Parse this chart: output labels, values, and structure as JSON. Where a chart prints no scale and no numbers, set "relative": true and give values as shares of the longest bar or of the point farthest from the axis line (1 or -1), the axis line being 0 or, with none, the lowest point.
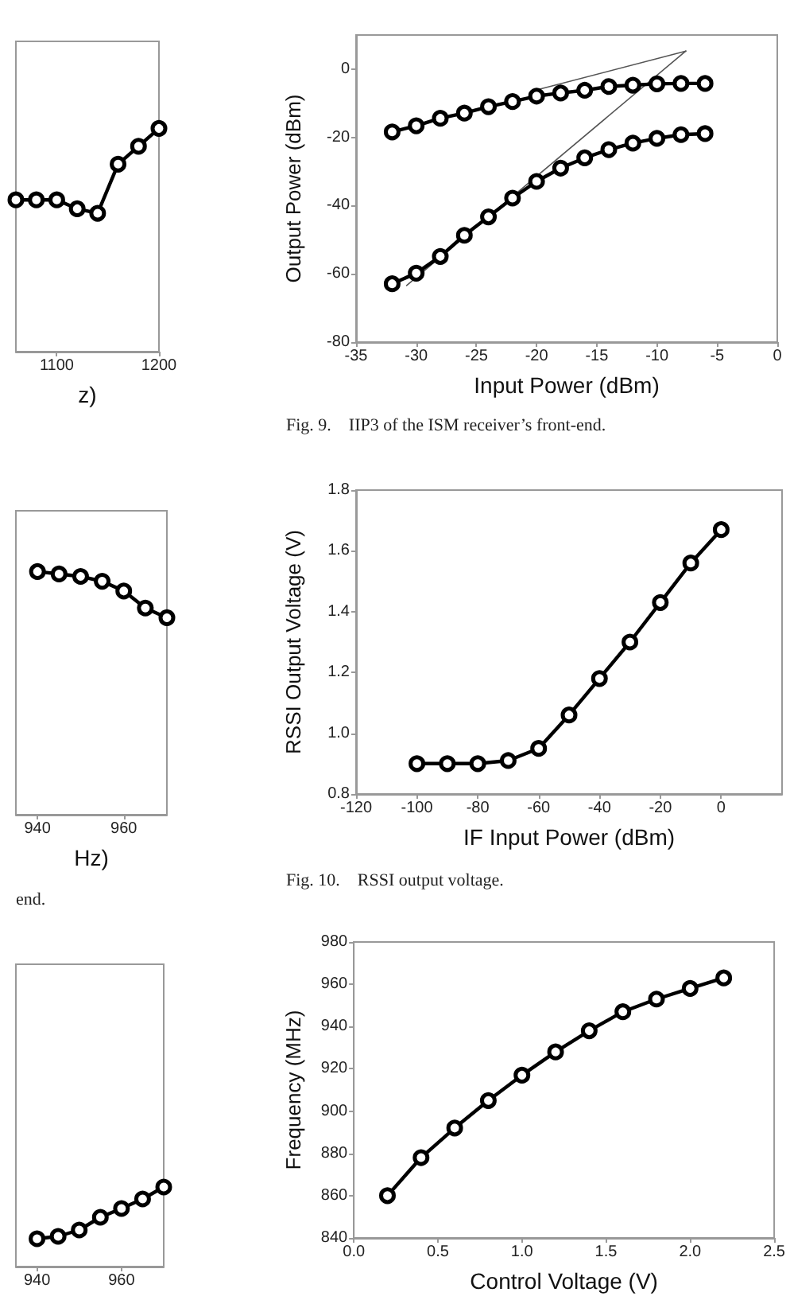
{
  "chart_data": [
    {
      "type": "line",
      "xlabel": "z)",
      "relative": true,
      "marker": "circle",
      "xlim": [
        1060,
        1200
      ],
      "xticks": [
        1100,
        1200
      ],
      "x": [
        1060,
        1080,
        1100,
        1120,
        1140,
        1160,
        1180,
        1200
      ],
      "series": [
        {
          "color": "#000000",
          "values": [
            0.68,
            0.68,
            0.68,
            0.64,
            0.62,
            0.84,
            0.92,
            1
          ]
        }
      ]
    },
    {
      "type": "line",
      "xlabel": "Input Power (dBm)",
      "ylabel": "Output Power (dBm)",
      "marker": "circle",
      "xlim": [
        -35,
        0
      ],
      "xticks": [
        -35,
        -30,
        -25,
        -20,
        -15,
        -10,
        -5,
        0
      ],
      "ylim": [
        -80,
        10
      ],
      "yticks": [
        -80,
        -60,
        -40,
        -20,
        0
      ],
      "x": [
        -32,
        -30,
        -28,
        -26,
        -24,
        -22,
        -20,
        -18,
        -16,
        -14,
        -12,
        -10,
        -8,
        -6
      ],
      "series": [
        {
          "color": "#000000",
          "values": [
            -18.4,
            -16.6,
            -14.4,
            -12.9,
            -11,
            -9.5,
            -7.9,
            -7,
            -6.2,
            -5.1,
            -4.7,
            -4.3,
            -4.2,
            -4.2
          ]
        },
        {
          "color": "#000000",
          "values": [
            -62.9,
            -59.8,
            -54.9,
            -48.7,
            -43.3,
            -37.8,
            -32.9,
            -29,
            -26,
            -23.6,
            -21.7,
            -20.3,
            -19.2,
            -18.9
          ]
        },
        {
          "color": "#555555",
          "marker": "none",
          "x": [
            -20.3,
            -7.6
          ],
          "values": [
            -6.4,
            5.3
          ]
        },
        {
          "color": "#555555",
          "marker": "none",
          "x": [
            -30.8,
            -7.6
          ],
          "values": [
            -63.4,
            5.3
          ]
        }
      ],
      "annotations": [
        "Fig. 9.    IIP3 of the ISM receiver’s front-end."
      ]
    },
    {
      "type": "line",
      "xlabel": "Hz)",
      "relative": true,
      "marker": "circle",
      "xlim": [
        935,
        970
      ],
      "xticks": [
        940,
        960
      ],
      "x": [
        940,
        945,
        950,
        955,
        960,
        965,
        970
      ],
      "series": [
        {
          "color": "#000000",
          "values": [
            1,
            0.99,
            0.98,
            0.96,
            0.92,
            0.85,
            0.81
          ]
        }
      ],
      "annotations": [
        "end."
      ]
    },
    {
      "type": "line",
      "xlabel": "IF Input Power (dBm)",
      "ylabel": "RSSI Output Voltage (V)",
      "marker": "circle",
      "xlim": [
        -120,
        20
      ],
      "xticks": [
        -120,
        -100,
        -80,
        -60,
        -40,
        -20,
        0
      ],
      "ylim": [
        0.8,
        1.8
      ],
      "yticks": [
        0.8,
        {
          "value": 1,
          "label": "1.0"
        },
        1.2,
        1.4,
        1.6,
        1.8
      ],
      "x": [
        -100,
        -90,
        -80,
        -70,
        -60,
        -50,
        -40,
        -30,
        -20,
        -10,
        0
      ],
      "series": [
        {
          "color": "#000000",
          "values": [
            0.9,
            0.9,
            0.9,
            0.91,
            0.95,
            1.06,
            1.18,
            1.3,
            1.43,
            1.56,
            1.67
          ]
        }
      ],
      "annotations": [
        "Fig. 10.    RSSI output voltage."
      ]
    },
    {
      "type": "line",
      "relative": true,
      "marker": "circle",
      "xlim": [
        935,
        970
      ],
      "xticks": [
        940,
        960
      ],
      "x": [
        940,
        945,
        950,
        955,
        960,
        965,
        970
      ],
      "series": [
        {
          "color": "#000000",
          "values": [
            0.35,
            0.38,
            0.46,
            0.62,
            0.73,
            0.85,
            1
          ]
        }
      ]
    },
    {
      "type": "line",
      "xlabel": "Control Voltage (V)",
      "ylabel": "Frequency (MHz)",
      "marker": "circle",
      "xlim": [
        0,
        2.5
      ],
      "xticks": [
        {
          "value": 0,
          "label": "0.0"
        },
        0.5,
        {
          "value": 1,
          "label": "1.0"
        },
        1.5,
        {
          "value": 2,
          "label": "2.0"
        },
        2.5
      ],
      "ylim": [
        840,
        980
      ],
      "yticks": [
        840,
        860,
        880,
        900,
        920,
        940,
        960,
        980
      ],
      "x": [
        0.2,
        0.4,
        0.6,
        0.8,
        1,
        1.2,
        1.4,
        1.6,
        1.8,
        2,
        2.2
      ],
      "series": [
        {
          "color": "#000000",
          "values": [
            860,
            878,
            892,
            905,
            917,
            928,
            938,
            947,
            953,
            958,
            963
          ]
        }
      ]
    }
  ]
}
